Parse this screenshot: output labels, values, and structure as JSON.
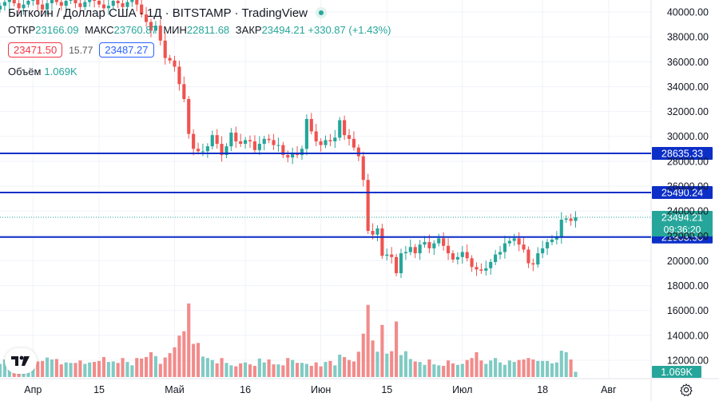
{
  "header": {
    "title": "Биткоин / Доллар США · 1Д · BITSTAMP · TradingView",
    "ohlc": [
      {
        "label": "ОТКР",
        "value": "23166.09"
      },
      {
        "label": "МАКС",
        "value": "23760.87"
      },
      {
        "label": "МИН",
        "value": "22811.68"
      },
      {
        "label": "ЗАКР",
        "value": "23494.21 +330.87 (+1.43%)"
      }
    ],
    "bid": "23471.50",
    "spread": "15.77",
    "ask": "23487.27",
    "volume_label": "Объём",
    "volume_value": "1.069K"
  },
  "colors": {
    "up": "#26a69a",
    "down": "#ef5350",
    "vol_up": "#80cbc4",
    "vol_down": "#f28b8b",
    "level": "#0c2fc7",
    "price_tag": "#26a69a",
    "grid": "#f0f3fa"
  },
  "chart_data": {
    "type": "candlestick",
    "symbol": "Биткоин / Доллар США",
    "interval": "1Д",
    "exchange": "BITSTAMP",
    "ylim": [
      10500,
      41000
    ],
    "y_ticks": [
      "12000.00",
      "14000.00",
      "16000.00",
      "18000.00",
      "20000.00",
      "22000.00",
      "24000.00",
      "26000.00",
      "28000.00",
      "30000.00",
      "32000.00",
      "34000.00",
      "36000.00",
      "38000.00",
      "40000.00"
    ],
    "x_ticks": [
      {
        "label": "Апр",
        "day": 0
      },
      {
        "label": "15",
        "day": 14
      },
      {
        "label": "Май",
        "day": 30
      },
      {
        "label": "16",
        "day": 45
      },
      {
        "label": "Июн",
        "day": 61
      },
      {
        "label": "15",
        "day": 75
      },
      {
        "label": "Июл",
        "day": 91
      },
      {
        "label": "18",
        "day": 108
      },
      {
        "label": "Авг",
        "day": 122
      }
    ],
    "day_range": [
      -7,
      131
    ],
    "levels": [
      {
        "value": 28635.33,
        "label": "28635.33"
      },
      {
        "value": 25490.24,
        "label": "25490.24"
      },
      {
        "value": 21903.5,
        "label": "21903.50"
      }
    ],
    "last_price": {
      "value": 23494.21,
      "label": "23494.21",
      "countdown": "09:36:20"
    },
    "last_volume_label": "1.069K",
    "volume_max": 20000,
    "closes": [
      40500,
      40800,
      41000,
      40700,
      40300,
      40600,
      40900,
      41000,
      40600,
      40200,
      40700,
      41000,
      40800,
      40500,
      40900,
      41000,
      40700,
      40400,
      40800,
      41000,
      40900,
      40600,
      40300,
      40500,
      40900,
      40700,
      40400,
      40800,
      41000,
      40600,
      39800,
      39200,
      38500,
      38900,
      37700,
      36300,
      36100,
      35600,
      34200,
      33000,
      30200,
      29000,
      28800,
      28800,
      29200,
      30100,
      29400,
      28500,
      29200,
      30300,
      29600,
      29400,
      29700,
      29600,
      28900,
      29400,
      29800,
      29700,
      29300,
      29300,
      28500,
      28300,
      28600,
      28500,
      29000,
      31400,
      30400,
      29600,
      29300,
      29700,
      29600,
      29900,
      31300,
      30100,
      29800,
      29100,
      28400,
      26500,
      22400,
      22100,
      22600,
      20400,
      20500,
      20300,
      19000,
      20600,
      20700,
      21100,
      20600,
      21300,
      21500,
      21000,
      21400,
      21800,
      21200,
      20600,
      20100,
      20300,
      20700,
      20200,
      19500,
      19300,
      19200,
      19400,
      19900,
      20500,
      20700,
      21400,
      21600,
      21800,
      21300,
      20900,
      19800,
      19700,
      20600,
      21000,
      21500,
      21700,
      21900,
      23300,
      23400,
      23200,
      23494
    ],
    "volumes": [
      2700,
      3600,
      3300,
      2700,
      3100,
      3300,
      3700,
      3500,
      3200,
      3300,
      4000,
      3600,
      3700,
      2600,
      3000,
      2900,
      2900,
      3400,
      2700,
      3000,
      3100,
      3300,
      4100,
      3100,
      3200,
      2900,
      3900,
      3100,
      2400,
      3900,
      3800,
      4100,
      5100,
      4300,
      2700,
      4000,
      4900,
      6100,
      8500,
      9400,
      15100,
      6800,
      7000,
      4200,
      3900,
      3500,
      2800,
      3900,
      2900,
      2400,
      2200,
      2800,
      3000,
      2600,
      2300,
      3800,
      3000,
      3600,
      2600,
      2600,
      2400,
      3900,
      3500,
      2900,
      2900,
      2700,
      2300,
      3000,
      2200,
      3100,
      3300,
      2400,
      4600,
      4100,
      3500,
      3200,
      5200,
      8900,
      14800,
      7500,
      5200,
      10700,
      4800,
      5300,
      11400,
      4500,
      5300,
      3700,
      3200,
      3100,
      2500,
      3600,
      2600,
      2400,
      2300,
      3400,
      2800,
      2500,
      2700,
      3500,
      3900,
      5100,
      3400,
      2700,
      3400,
      3900,
      3000,
      2500,
      3400,
      3100,
      3500,
      3600,
      3900,
      3600,
      3300,
      3300,
      3300,
      2800,
      3000,
      5400,
      5100,
      3600,
      1069
    ]
  }
}
